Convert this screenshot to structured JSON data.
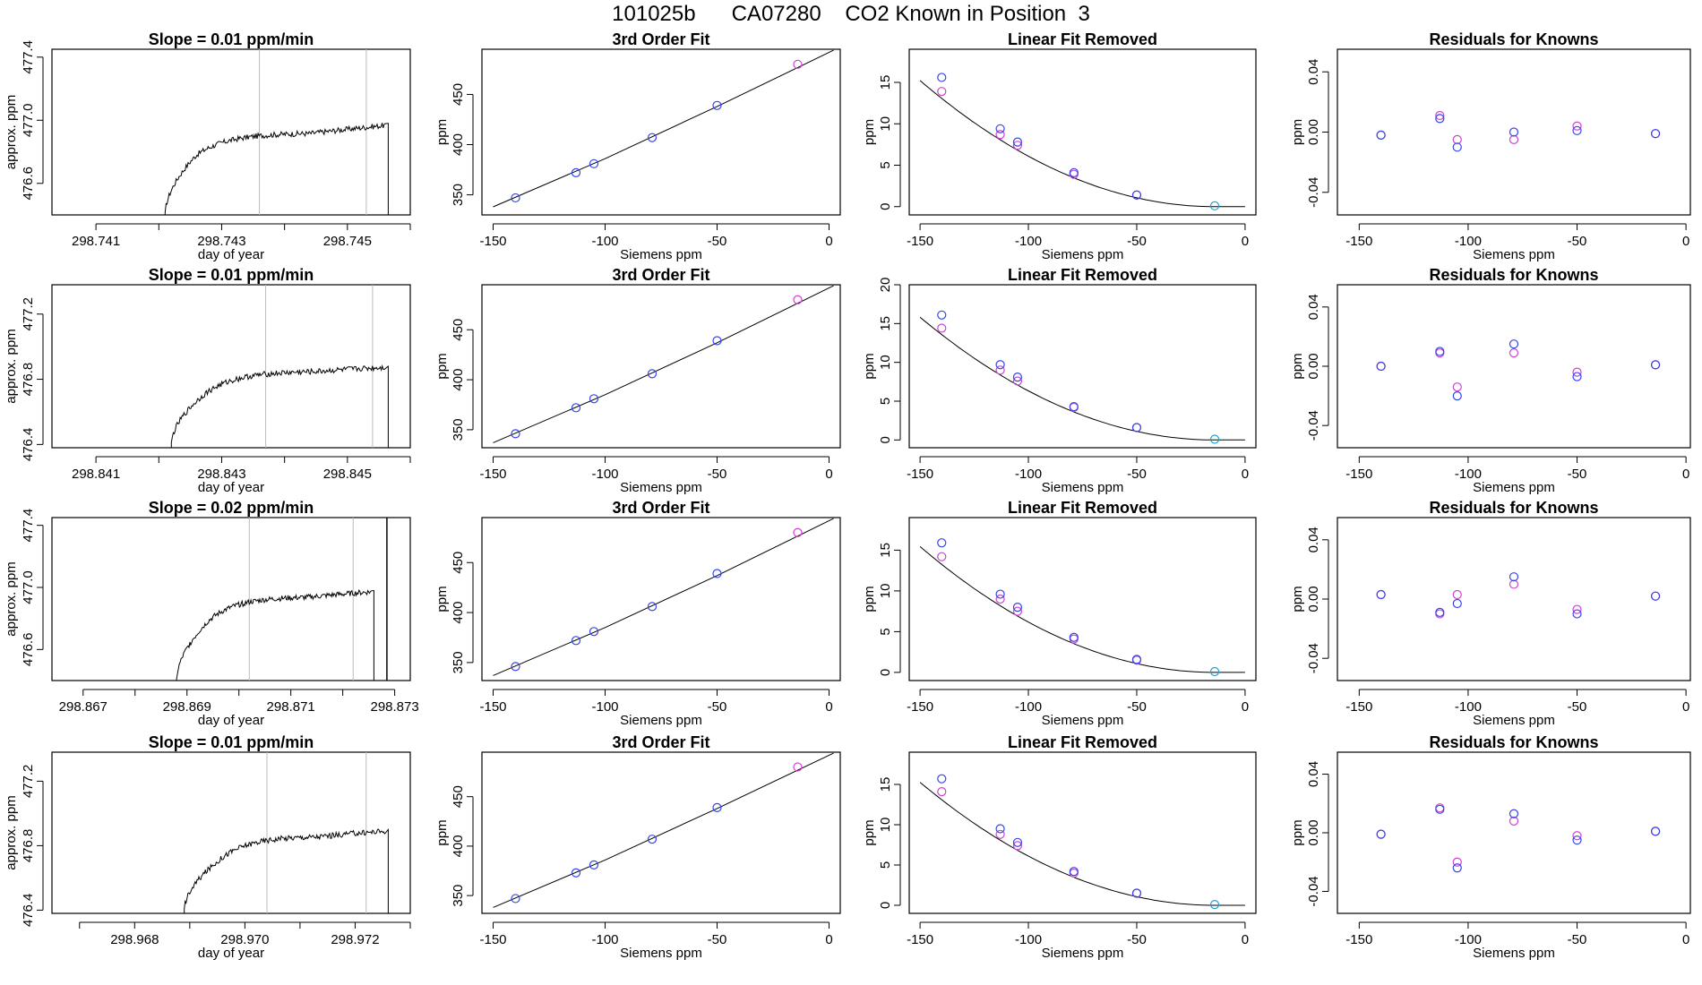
{
  "page": {
    "title": "101025b      CA07280    CO2 Known in Position  3"
  },
  "colors": {
    "axis": "#000000",
    "trace": "#000000",
    "marker_line": "#bbbbbb",
    "point_known": "#3344ee",
    "point_alt": "#cc44cc",
    "point_ref": "#22a0d0"
  },
  "chart_data": [
    {
      "type": "line",
      "title": "Slope =  0.01  ppm/min",
      "xlabel": "day of year",
      "ylabel": "approx. ppm",
      "xlim": [
        298.7403,
        298.746
      ],
      "ylim": [
        476.4,
        477.45
      ],
      "xticks": [
        298.741,
        298.743,
        298.745
      ],
      "xtick_labels": [
        "298.741",
        "298.743",
        "298.745"
      ],
      "xticks_minor": [
        298.742,
        298.744,
        298.746
      ],
      "yticks": [
        476.6,
        477.0,
        477.4
      ],
      "ytick_labels": [
        "476.6",
        "477.0",
        "477.4"
      ],
      "trace": {
        "start": 298.7421,
        "rise_end": 298.7426,
        "plateau_end": 298.7456,
        "drop": 298.74565,
        "base": 476.4,
        "shoulder": 476.78,
        "plateau": 476.92,
        "end_level": 476.98
      },
      "vertical_markers": [
        298.7436,
        298.7453
      ]
    },
    {
      "type": "scatter",
      "title": "3rd Order Fit",
      "xlabel": "Siemens ppm",
      "ylabel": "ppm",
      "xlim": [
        -155,
        5
      ],
      "ylim": [
        330,
        495
      ],
      "xticks": [
        -150,
        -100,
        -50,
        0
      ],
      "xtick_labels": [
        "-150",
        "-100",
        "-50",
        "0"
      ],
      "yticks": [
        350,
        400,
        450
      ],
      "ytick_labels": [
        "350",
        "400",
        "450"
      ],
      "x": [
        -140,
        -113,
        -105,
        -79,
        -50,
        -14
      ],
      "y": [
        347,
        372,
        381,
        407,
        439,
        480
      ],
      "series_colors": [
        "point_known",
        "point_known",
        "point_known",
        "point_known",
        "point_known",
        "point_alt"
      ],
      "curve": [
        [
          -150,
          338
        ],
        [
          -100,
          386
        ],
        [
          -50,
          438
        ],
        [
          2,
          494
        ]
      ]
    },
    {
      "type": "scatter",
      "title": "Linear Fit Removed",
      "xlabel": "Siemens ppm",
      "ylabel": "ppm",
      "xlim": [
        -155,
        5
      ],
      "ylim": [
        -1,
        19
      ],
      "xticks": [
        -150,
        -100,
        -50,
        0
      ],
      "xtick_labels": [
        "-150",
        "-100",
        "-50",
        "0"
      ],
      "yticks": [
        0,
        5,
        10,
        15
      ],
      "ytick_labels": [
        "0",
        "5",
        "10",
        "15"
      ],
      "series": [
        {
          "name": "known",
          "color": "point_known",
          "x": [
            -140,
            -113,
            -105,
            -79,
            -50,
            -14
          ],
          "y": [
            15.6,
            9.4,
            7.8,
            4.1,
            1.4,
            0.1
          ]
        },
        {
          "name": "alt",
          "color": "point_alt",
          "x": [
            -140,
            -113,
            -105,
            -79,
            -50
          ],
          "y": [
            13.9,
            8.7,
            7.4,
            3.9,
            1.4
          ]
        }
      ],
      "curve_fn": {
        "a": 0.000823,
        "x0": -14
      }
    },
    {
      "type": "scatter",
      "title": "Residuals for Knowns",
      "xlabel": "Siemens ppm",
      "ylabel": "ppm",
      "xlim": [
        -160,
        2
      ],
      "ylim": [
        -0.055,
        0.055
      ],
      "xticks": [
        -150,
        -100,
        -50,
        0
      ],
      "xtick_labels": [
        "-150",
        "-100",
        "-50",
        "0"
      ],
      "yticks": [
        -0.04,
        0.0,
        0.04
      ],
      "ytick_labels": [
        "-0.04",
        "0.00",
        "0.04"
      ],
      "series": [
        {
          "name": "known",
          "color": "point_known",
          "x": [
            -140,
            -113,
            -105,
            -79,
            -50,
            -14
          ],
          "y": [
            -0.002,
            0.009,
            -0.01,
            0.0,
            0.001,
            -0.001
          ]
        },
        {
          "name": "alt",
          "color": "point_alt",
          "x": [
            -140,
            -113,
            -105,
            -79,
            -50,
            -14
          ],
          "y": [
            -0.002,
            0.011,
            -0.005,
            -0.005,
            0.004,
            -0.001
          ]
        }
      ]
    },
    {
      "type": "line",
      "title": "Slope =  0.01  ppm/min",
      "xlabel": "day of year",
      "ylabel": "approx. ppm",
      "xlim": [
        298.8403,
        298.846
      ],
      "ylim": [
        476.38,
        477.38
      ],
      "xticks": [
        298.841,
        298.843,
        298.845
      ],
      "xtick_labels": [
        "298.841",
        "298.843",
        "298.845"
      ],
      "xticks_minor": [
        298.842,
        298.844,
        298.846
      ],
      "yticks": [
        476.4,
        476.8,
        477.2
      ],
      "ytick_labels": [
        "476.4",
        "476.8",
        "477.2"
      ],
      "trace": {
        "start": 298.8422,
        "rise_end": 298.8427,
        "plateau_end": 298.8456,
        "drop": 298.84565,
        "base": 476.4,
        "shoulder": 476.7,
        "plateau": 476.85,
        "end_level": 476.88
      },
      "vertical_markers": [
        298.8437,
        298.8454
      ]
    },
    {
      "type": "scatter",
      "title": "3rd Order Fit",
      "xlabel": "Siemens ppm",
      "ylabel": "ppm",
      "xlim": [
        -155,
        5
      ],
      "ylim": [
        332,
        495
      ],
      "xticks": [
        -150,
        -100,
        -50,
        0
      ],
      "xtick_labels": [
        "-150",
        "-100",
        "-50",
        "0"
      ],
      "yticks": [
        350,
        400,
        450
      ],
      "ytick_labels": [
        "350",
        "400",
        "450"
      ],
      "x": [
        -140,
        -113,
        -105,
        -79,
        -50,
        -14
      ],
      "y": [
        346,
        372,
        381,
        406,
        439,
        480
      ],
      "series_colors": [
        "point_known",
        "point_known",
        "point_known",
        "point_known",
        "point_known",
        "point_alt"
      ],
      "curve": [
        [
          -150,
          337
        ],
        [
          -100,
          385
        ],
        [
          -50,
          437
        ],
        [
          2,
          494
        ]
      ]
    },
    {
      "type": "scatter",
      "title": "Linear Fit Removed",
      "xlabel": "Siemens ppm",
      "ylabel": "ppm",
      "xlim": [
        -155,
        5
      ],
      "ylim": [
        -1,
        20
      ],
      "xticks": [
        -150,
        -100,
        -50,
        0
      ],
      "xtick_labels": [
        "-150",
        "-100",
        "-50",
        "0"
      ],
      "yticks": [
        0,
        5,
        10,
        15,
        20
      ],
      "ytick_labels": [
        "0",
        "5",
        "10",
        "15",
        "20"
      ],
      "series": [
        {
          "name": "known",
          "color": "point_known",
          "x": [
            -140,
            -113,
            -105,
            -79,
            -50,
            -14
          ],
          "y": [
            16.1,
            9.7,
            8.1,
            4.3,
            1.6,
            0.1
          ]
        },
        {
          "name": "alt",
          "color": "point_alt",
          "x": [
            -140,
            -113,
            -105,
            -79,
            -50
          ],
          "y": [
            14.4,
            9.0,
            7.6,
            4.2,
            1.6
          ]
        }
      ],
      "curve_fn": {
        "a": 0.000855,
        "x0": -14
      }
    },
    {
      "type": "scatter",
      "title": "Residuals for Knowns",
      "xlabel": "Siemens ppm",
      "ylabel": "ppm",
      "xlim": [
        -160,
        2
      ],
      "ylim": [
        -0.055,
        0.055
      ],
      "xticks": [
        -150,
        -100,
        -50,
        0
      ],
      "xtick_labels": [
        "-150",
        "-100",
        "-50",
        "0"
      ],
      "yticks": [
        -0.04,
        0.0,
        0.04
      ],
      "ytick_labels": [
        "-0.04",
        "0.00",
        "0.04"
      ],
      "series": [
        {
          "name": "known",
          "color": "point_known",
          "x": [
            -140,
            -113,
            -105,
            -79,
            -50,
            -14
          ],
          "y": [
            0.0,
            0.01,
            -0.02,
            0.015,
            -0.007,
            0.001
          ]
        },
        {
          "name": "alt",
          "color": "point_alt",
          "x": [
            -140,
            -113,
            -105,
            -79,
            -50,
            -14
          ],
          "y": [
            0.0,
            0.009,
            -0.014,
            0.009,
            -0.004,
            0.001
          ]
        }
      ]
    },
    {
      "type": "line",
      "title": "Slope =  0.02  ppm/min",
      "xlabel": "day of year",
      "ylabel": "approx. ppm",
      "xlim": [
        298.8664,
        298.8733
      ],
      "ylim": [
        476.4,
        477.45
      ],
      "xticks": [
        298.867,
        298.869,
        298.871,
        298.873
      ],
      "xtick_labels": [
        "298.867",
        "298.869",
        "298.871",
        "298.873"
      ],
      "xticks_minor": [
        298.868,
        298.87,
        298.872
      ],
      "yticks": [
        476.6,
        477.0,
        477.4
      ],
      "ytick_labels": [
        "476.6",
        "477.0",
        "477.4"
      ],
      "trace": {
        "start": 298.8688,
        "rise_end": 298.8694,
        "plateau_end": 298.87255,
        "drop": 298.8726,
        "base": 476.4,
        "shoulder": 476.78,
        "plateau": 476.94,
        "end_level": 476.98,
        "spike": 298.87285
      },
      "vertical_markers": [
        298.8702,
        298.8722
      ]
    },
    {
      "type": "scatter",
      "title": "3rd Order Fit",
      "xlabel": "Siemens ppm",
      "ylabel": "ppm",
      "xlim": [
        -155,
        5
      ],
      "ylim": [
        332,
        495
      ],
      "xticks": [
        -150,
        -100,
        -50,
        0
      ],
      "xtick_labels": [
        "-150",
        "-100",
        "-50",
        "0"
      ],
      "yticks": [
        350,
        400,
        450
      ],
      "ytick_labels": [
        "350",
        "400",
        "450"
      ],
      "x": [
        -140,
        -113,
        -105,
        -79,
        -50,
        -14
      ],
      "y": [
        346,
        372,
        381,
        406,
        439,
        480
      ],
      "series_colors": [
        "point_known",
        "point_known",
        "point_known",
        "point_known",
        "point_known",
        "point_alt"
      ],
      "curve": [
        [
          -150,
          337
        ],
        [
          -100,
          385
        ],
        [
          -50,
          437
        ],
        [
          2,
          494
        ]
      ]
    },
    {
      "type": "scatter",
      "title": "Linear Fit Removed",
      "xlabel": "Siemens ppm",
      "ylabel": "ppm",
      "xlim": [
        -155,
        5
      ],
      "ylim": [
        -1,
        19
      ],
      "xticks": [
        -150,
        -100,
        -50,
        0
      ],
      "xtick_labels": [
        "-150",
        "-100",
        "-50",
        "0"
      ],
      "yticks": [
        0,
        5,
        10,
        15
      ],
      "ytick_labels": [
        "0",
        "5",
        "10",
        "15"
      ],
      "series": [
        {
          "name": "known",
          "color": "point_known",
          "x": [
            -140,
            -113,
            -105,
            -79,
            -50,
            -14
          ],
          "y": [
            15.9,
            9.6,
            8.0,
            4.3,
            1.6,
            0.1
          ]
        },
        {
          "name": "alt",
          "color": "point_alt",
          "x": [
            -140,
            -113,
            -105,
            -79,
            -50
          ],
          "y": [
            14.2,
            9.0,
            7.5,
            4.1,
            1.5
          ]
        }
      ],
      "curve_fn": {
        "a": 0.000835,
        "x0": -14
      }
    },
    {
      "type": "scatter",
      "title": "Residuals for Knowns",
      "xlabel": "Siemens ppm",
      "ylabel": "ppm",
      "xlim": [
        -160,
        2
      ],
      "ylim": [
        -0.055,
        0.055
      ],
      "xticks": [
        -150,
        -100,
        -50,
        0
      ],
      "xtick_labels": [
        "-150",
        "-100",
        "-50",
        "0"
      ],
      "yticks": [
        -0.04,
        0.0,
        0.04
      ],
      "ytick_labels": [
        "-0.04",
        "0.00",
        "0.04"
      ],
      "series": [
        {
          "name": "known",
          "color": "point_known",
          "x": [
            -140,
            -113,
            -105,
            -79,
            -50,
            -14
          ],
          "y": [
            0.003,
            -0.009,
            -0.003,
            0.015,
            -0.01,
            0.002
          ]
        },
        {
          "name": "alt",
          "color": "point_alt",
          "x": [
            -140,
            -113,
            -105,
            -79,
            -50,
            -14
          ],
          "y": [
            0.003,
            -0.01,
            0.003,
            0.01,
            -0.007,
            0.002
          ]
        }
      ]
    },
    {
      "type": "line",
      "title": "Slope =  0.01  ppm/min",
      "xlabel": "day of year",
      "ylabel": "approx. ppm",
      "xlim": [
        298.9665,
        298.973
      ],
      "ylim": [
        476.38,
        477.38
      ],
      "xticks": [
        298.968,
        298.97,
        298.972
      ],
      "xtick_labels": [
        "298.968",
        "298.970",
        "298.972"
      ],
      "xticks_minor": [
        298.967,
        298.969,
        298.971,
        298.973
      ],
      "yticks": [
        476.4,
        476.8,
        477.2
      ],
      "ytick_labels": [
        "476.4",
        "476.8",
        "477.2"
      ],
      "trace": {
        "start": 298.9689,
        "rise_end": 298.9695,
        "plateau_end": 298.97255,
        "drop": 298.9726,
        "base": 476.4,
        "shoulder": 476.7,
        "plateau": 476.86,
        "end_level": 476.9
      },
      "vertical_markers": [
        298.9704,
        298.9722
      ]
    },
    {
      "type": "scatter",
      "title": "3rd Order Fit",
      "xlabel": "Siemens ppm",
      "ylabel": "ppm",
      "xlim": [
        -155,
        5
      ],
      "ylim": [
        332,
        495
      ],
      "xticks": [
        -150,
        -100,
        -50,
        0
      ],
      "xtick_labels": [
        "-150",
        "-100",
        "-50",
        "0"
      ],
      "yticks": [
        350,
        400,
        450
      ],
      "ytick_labels": [
        "350",
        "400",
        "450"
      ],
      "x": [
        -140,
        -113,
        -105,
        -79,
        -50,
        -14
      ],
      "y": [
        347,
        373,
        381,
        407,
        439,
        480
      ],
      "series_colors": [
        "point_known",
        "point_known",
        "point_known",
        "point_known",
        "point_known",
        "point_alt"
      ],
      "curve": [
        [
          -150,
          338
        ],
        [
          -100,
          386
        ],
        [
          -50,
          438
        ],
        [
          2,
          494
        ]
      ]
    },
    {
      "type": "scatter",
      "title": "Linear Fit Removed",
      "xlabel": "Siemens ppm",
      "ylabel": "ppm",
      "xlim": [
        -155,
        5
      ],
      "ylim": [
        -1,
        19
      ],
      "xticks": [
        -150,
        -100,
        -50,
        0
      ],
      "xtick_labels": [
        "-150",
        "-100",
        "-50",
        "0"
      ],
      "yticks": [
        0,
        5,
        10,
        15
      ],
      "ytick_labels": [
        "0",
        "5",
        "10",
        "15"
      ],
      "series": [
        {
          "name": "known",
          "color": "point_known",
          "x": [
            -140,
            -113,
            -105,
            -79,
            -50,
            -14
          ],
          "y": [
            15.7,
            9.5,
            7.8,
            4.2,
            1.5,
            0.1
          ]
        },
        {
          "name": "alt",
          "color": "point_alt",
          "x": [
            -140,
            -113,
            -105,
            -79,
            -50
          ],
          "y": [
            14.1,
            8.8,
            7.4,
            4.0,
            1.5
          ]
        }
      ],
      "curve_fn": {
        "a": 0.000825,
        "x0": -14
      }
    },
    {
      "type": "scatter",
      "title": "Residuals for Knowns",
      "xlabel": "Siemens ppm",
      "ylabel": "ppm",
      "xlim": [
        -160,
        2
      ],
      "ylim": [
        -0.055,
        0.055
      ],
      "xticks": [
        -150,
        -100,
        -50,
        0
      ],
      "xtick_labels": [
        "-150",
        "-100",
        "-50",
        "0"
      ],
      "yticks": [
        -0.04,
        0.0,
        0.04
      ],
      "ytick_labels": [
        "-0.04",
        "0.00",
        "0.04"
      ],
      "series": [
        {
          "name": "known",
          "color": "point_known",
          "x": [
            -140,
            -113,
            -105,
            -79,
            -50,
            -14
          ],
          "y": [
            -0.001,
            0.016,
            -0.024,
            0.013,
            -0.005,
            0.001
          ]
        },
        {
          "name": "alt",
          "color": "point_alt",
          "x": [
            -140,
            -113,
            -105,
            -79,
            -50,
            -14
          ],
          "y": [
            -0.001,
            0.017,
            -0.02,
            0.008,
            -0.002,
            0.001
          ]
        }
      ]
    }
  ]
}
